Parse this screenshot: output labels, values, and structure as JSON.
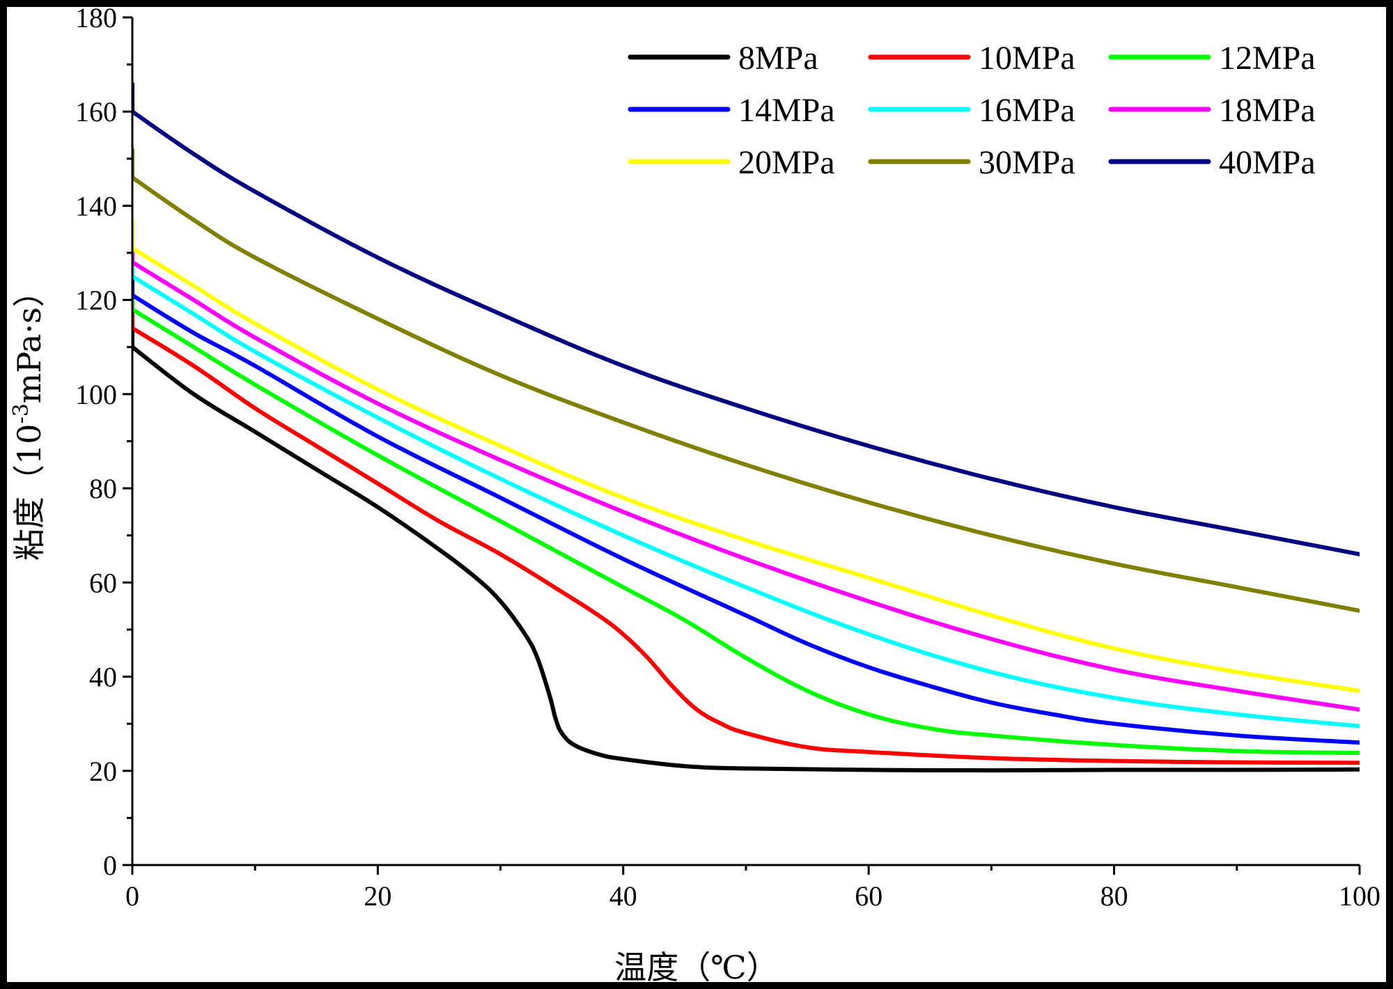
{
  "chart_data": {
    "type": "line",
    "title": "",
    "xlabel": "温度（℃）",
    "ylabel_prefix": "粘度（10",
    "ylabel_sup": "-3",
    "ylabel_suffix": "mPa·s）",
    "xlim": [
      0,
      100
    ],
    "ylim": [
      0,
      180
    ],
    "x_ticks": [
      0,
      20,
      40,
      60,
      80,
      100
    ],
    "y_ticks": [
      0,
      20,
      40,
      60,
      80,
      100,
      120,
      140,
      160,
      180
    ],
    "grid": false,
    "legend_position": "top-right",
    "series": [
      {
        "name": "8MPa",
        "color": "#000000",
        "x": [
          0,
          5,
          10,
          15,
          20,
          25,
          28,
          30,
          32,
          33,
          34,
          34.5,
          35,
          36,
          38,
          40,
          45,
          50,
          60,
          70,
          80,
          90,
          100
        ],
        "y": [
          110,
          100,
          92,
          84,
          76,
          67,
          61,
          56,
          49,
          44,
          36,
          31,
          28,
          25.5,
          23.5,
          22.5,
          21,
          20.5,
          20.2,
          20.1,
          20.2,
          20.2,
          20.3
        ]
      },
      {
        "name": "10MPa",
        "color": "#ff0000",
        "x": [
          0,
          5,
          10,
          15,
          20,
          25,
          30,
          35,
          38,
          40,
          42,
          44,
          46,
          48,
          50,
          55,
          60,
          70,
          80,
          90,
          100
        ],
        "y": [
          114,
          106,
          97,
          89,
          81,
          73,
          66,
          58,
          53,
          49,
          44,
          38,
          33,
          30,
          28,
          25,
          24,
          22.7,
          22.1,
          21.8,
          21.7
        ]
      },
      {
        "name": "12MPa",
        "color": "#00ff00",
        "x": [
          0,
          5,
          10,
          20,
          30,
          35,
          40,
          45,
          50,
          55,
          60,
          65,
          70,
          80,
          90,
          100
        ],
        "y": [
          118,
          110,
          102,
          87,
          73,
          66,
          59,
          52,
          44,
          37,
          32,
          29,
          27.5,
          25.5,
          24.2,
          23.8
        ]
      },
      {
        "name": "14MPa",
        "color": "#0000ff",
        "x": [
          0,
          5,
          10,
          20,
          30,
          40,
          50,
          55,
          60,
          65,
          70,
          75,
          80,
          90,
          100
        ],
        "y": [
          121,
          113,
          106,
          91,
          78,
          65,
          53,
          47,
          42,
          38,
          34.5,
          32,
          30,
          27.5,
          26
        ]
      },
      {
        "name": "16MPa",
        "color": "#00ffff",
        "x": [
          0,
          5,
          10,
          20,
          30,
          40,
          50,
          60,
          70,
          80,
          90,
          100
        ],
        "y": [
          125,
          117,
          109,
          95,
          82,
          70,
          59,
          49,
          41,
          35.5,
          32,
          29.5
        ]
      },
      {
        "name": "18MPa",
        "color": "#ff00ff",
        "x": [
          0,
          5,
          10,
          20,
          30,
          40,
          50,
          60,
          70,
          80,
          90,
          100
        ],
        "y": [
          128,
          120,
          112,
          98,
          86,
          75,
          65,
          56,
          48,
          41.5,
          37,
          33
        ]
      },
      {
        "name": "20MPa",
        "color": "#ffff00",
        "x": [
          0,
          5,
          10,
          20,
          30,
          40,
          50,
          60,
          70,
          80,
          90,
          100
        ],
        "y": [
          131,
          123,
          115,
          101,
          89,
          78,
          69,
          61,
          53,
          46,
          41,
          37
        ]
      },
      {
        "name": "30MPa",
        "color": "#808000",
        "x": [
          0,
          5,
          10,
          20,
          30,
          40,
          50,
          60,
          70,
          80,
          90,
          100
        ],
        "y": [
          146,
          137,
          129,
          116,
          104,
          94,
          85,
          77,
          70,
          64,
          59,
          54
        ]
      },
      {
        "name": "40MPa",
        "color": "#000080",
        "x": [
          0,
          5,
          10,
          20,
          30,
          40,
          50,
          60,
          70,
          80,
          90,
          100
        ],
        "y": [
          160,
          151,
          143,
          129,
          117,
          106,
          97,
          89,
          82,
          76,
          71,
          66
        ]
      }
    ]
  }
}
